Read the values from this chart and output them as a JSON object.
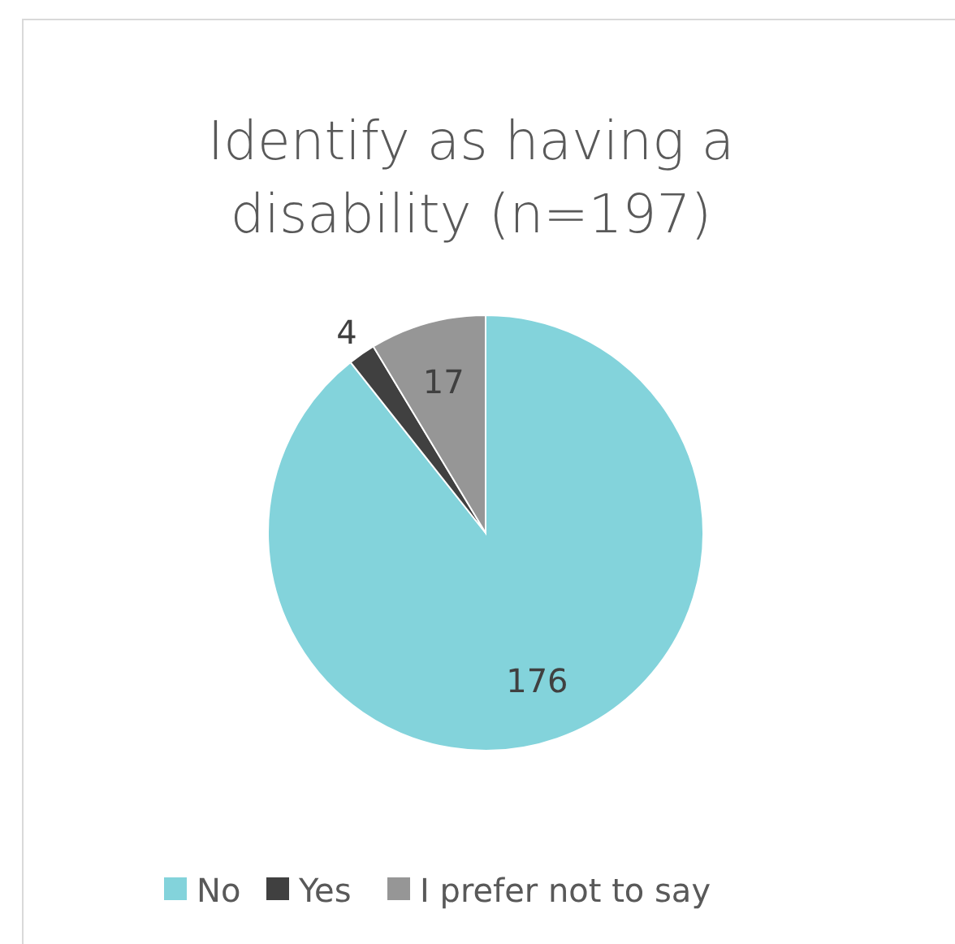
{
  "chart_data": {
    "type": "pie",
    "title": "Identify as having a disability (n=197)",
    "categories": [
      "No",
      "Yes",
      "I prefer not to say"
    ],
    "values": [
      176,
      4,
      17
    ],
    "colors": [
      "#83d3db",
      "#404040",
      "#969696"
    ],
    "data_labels": true,
    "legend": "bottom"
  }
}
